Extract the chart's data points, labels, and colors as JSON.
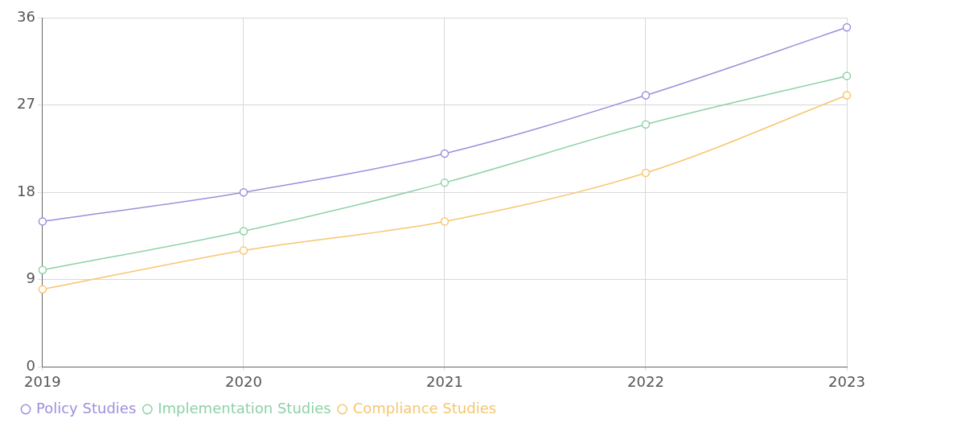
{
  "chart_data": {
    "type": "line",
    "categories": [
      "2019",
      "2020",
      "2021",
      "2022",
      "2023"
    ],
    "series": [
      {
        "name": "Policy Studies",
        "color": "#9d8fdb",
        "values": [
          15,
          18,
          22,
          28,
          35
        ]
      },
      {
        "name": "Implementation Studies",
        "color": "#8ed1a6",
        "values": [
          10,
          14,
          19,
          25,
          30
        ]
      },
      {
        "name": "Compliance Studies",
        "color": "#f6c66e",
        "values": [
          8,
          12,
          15,
          20,
          28
        ]
      }
    ],
    "ylim": [
      0,
      36
    ],
    "yticks": [
      0,
      9,
      18,
      27,
      36
    ],
    "grid": true,
    "legend": "bottom",
    "marker": "circle",
    "line_style": "solid"
  }
}
